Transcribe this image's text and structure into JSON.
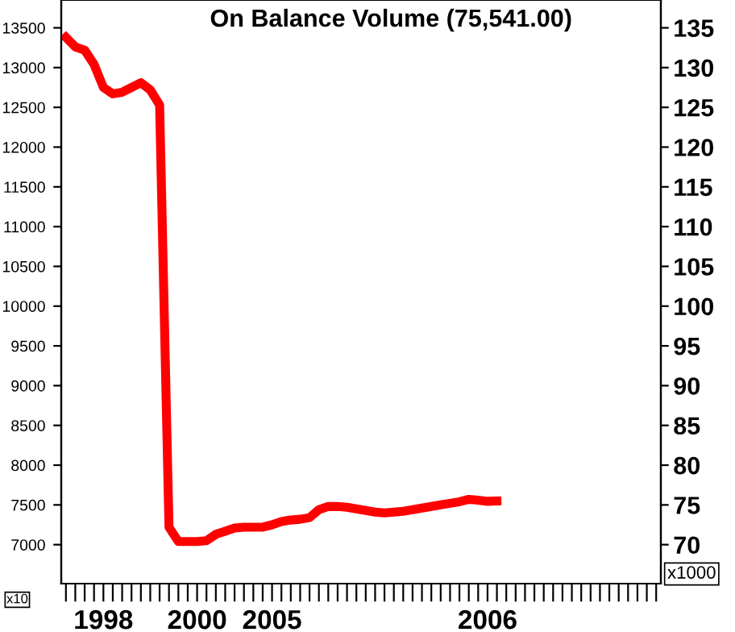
{
  "chart_data": {
    "type": "line",
    "title": "On Balance Volume (75,541.00)",
    "categories": [
      null,
      null,
      null,
      null,
      "1998",
      null,
      null,
      null,
      null,
      null,
      null,
      null,
      null,
      null,
      "2000",
      null,
      null,
      null,
      null,
      null,
      null,
      null,
      "2005",
      null,
      null,
      null,
      null,
      null,
      null,
      null,
      null,
      null,
      null,
      null,
      null,
      null,
      null,
      null,
      null,
      null,
      null,
      null,
      null,
      null,
      null,
      "2006",
      null,
      null,
      null,
      null,
      null,
      null,
      null,
      null,
      null,
      null,
      null,
      null,
      null,
      null,
      null,
      null,
      null,
      null
    ],
    "series": [
      {
        "color": "#ff0000",
        "values": [
          13380,
          13260,
          13220,
          13040,
          12750,
          12670,
          12690,
          12750,
          12810,
          12720,
          12530,
          7220,
          7040,
          7040,
          7040,
          7050,
          7130,
          7170,
          7210,
          7220,
          7220,
          7220,
          7250,
          7290,
          7310,
          7320,
          7340,
          7440,
          7480,
          7480,
          7470,
          7450,
          7430,
          7410,
          7400,
          7410,
          7420,
          7440,
          7460,
          7480,
          7500,
          7520,
          7540,
          7570,
          7560,
          7545,
          7550,
          null,
          null,
          null,
          null,
          null,
          null,
          null,
          null,
          null,
          null,
          null,
          null,
          null,
          null,
          null,
          null,
          null
        ]
      }
    ],
    "ylim": [
      6510,
      13850
    ],
    "yticks": [
      7000,
      7500,
      8000,
      8500,
      9000,
      9500,
      10000,
      10500,
      11000,
      11500,
      12000,
      12500,
      13000,
      13500
    ],
    "y2lim": [
      65.1,
      138.5
    ],
    "y2ticks": [
      70,
      75,
      80,
      85,
      90,
      95,
      100,
      105,
      110,
      115,
      120,
      125,
      130,
      135
    ],
    "annotations": [
      "x10",
      "x1000"
    ],
    "grid": false,
    "marker": "none",
    "line_style": "solid"
  }
}
